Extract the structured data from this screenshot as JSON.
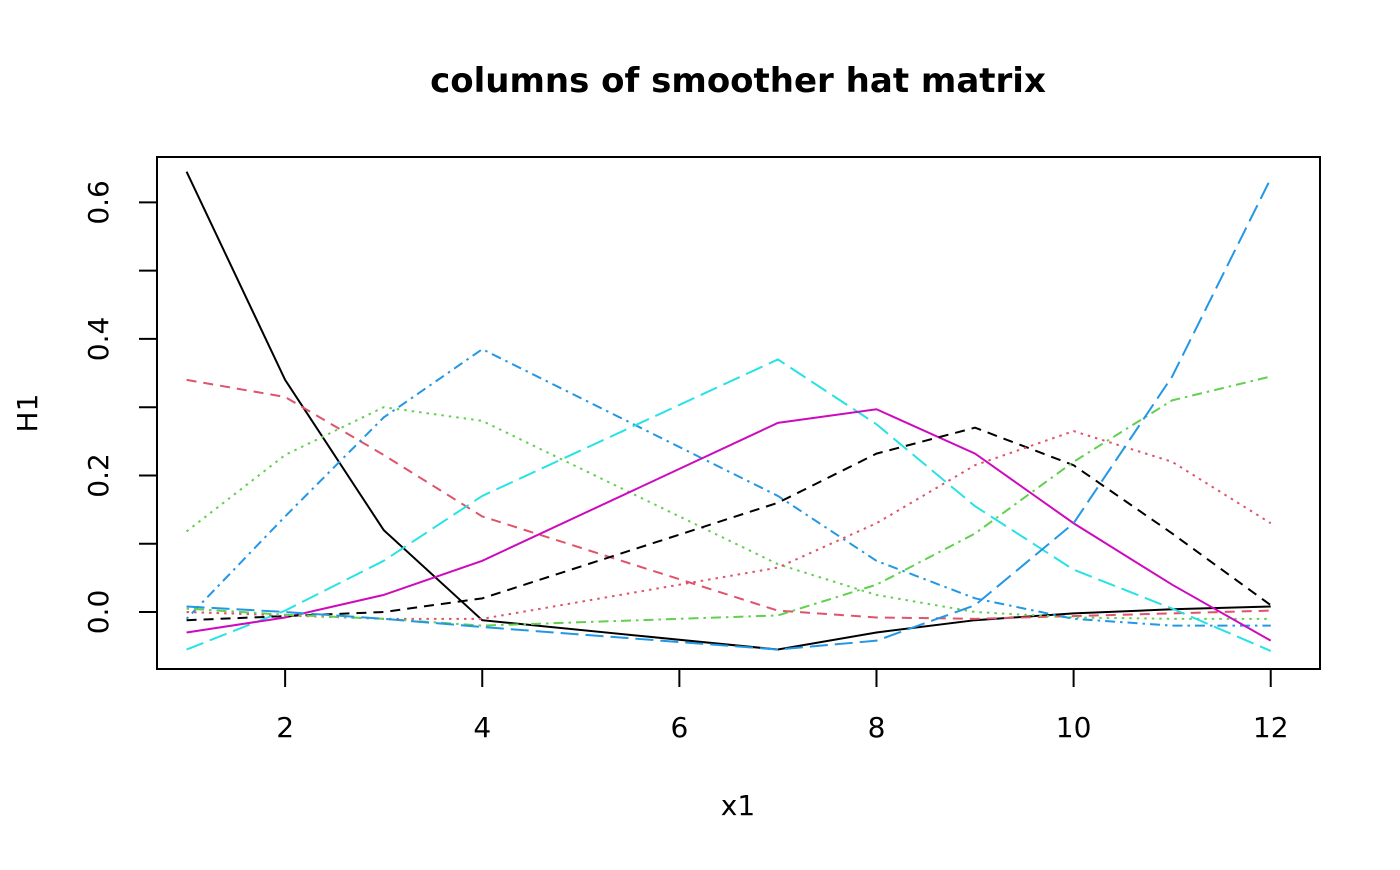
{
  "chart_data": {
    "type": "line",
    "title": "columns of smoother hat matrix",
    "xlabel": "x1",
    "ylabel": "H1",
    "xlim": [
      0.7,
      12.5
    ],
    "ylim": [
      -0.0835,
      0.6665
    ],
    "x": [
      1,
      2,
      3,
      4,
      7,
      8,
      9,
      10,
      11,
      12
    ],
    "xticks": [
      2,
      4,
      6,
      8,
      10,
      12
    ],
    "yticks": [
      0.0,
      0.1,
      0.2,
      0.3,
      0.4,
      0.5,
      0.6
    ],
    "yticklabels": [
      "0.0",
      "0.2",
      "0.4",
      "0.6"
    ],
    "grid": false,
    "legend": "none",
    "series": [
      {
        "color": "#000000",
        "dash": "solid",
        "values": [
          0.645,
          0.34,
          0.12,
          -0.012,
          -0.055,
          -0.03,
          -0.012,
          -0.002,
          0.004,
          0.008
        ]
      },
      {
        "color": "#DF536B",
        "dash": "dashed",
        "values": [
          0.34,
          0.315,
          0.23,
          0.14,
          0.002,
          -0.008,
          -0.01,
          -0.006,
          -0.002,
          0.002
        ]
      },
      {
        "color": "#61D04F",
        "dash": "dotted",
        "values": [
          0.118,
          0.23,
          0.3,
          0.28,
          0.07,
          0.025,
          0.0,
          -0.008,
          -0.01,
          -0.01
        ]
      },
      {
        "color": "#2297E6",
        "dash": "dotdash",
        "values": [
          -0.01,
          0.14,
          0.285,
          0.385,
          0.17,
          0.075,
          0.02,
          -0.01,
          -0.02,
          -0.02
        ]
      },
      {
        "color": "#28E2E5",
        "dash": "longdash",
        "values": [
          -0.055,
          0.002,
          0.075,
          0.17,
          0.37,
          0.275,
          0.155,
          0.062,
          0.005,
          -0.057
        ]
      },
      {
        "color": "#CD0BBC",
        "dash": "solid",
        "values": [
          -0.03,
          -0.008,
          0.025,
          0.075,
          0.277,
          0.297,
          0.232,
          0.13,
          0.04,
          -0.042
        ]
      },
      {
        "color": "#000000",
        "dash": "dashed",
        "values": [
          -0.012,
          -0.006,
          0.0,
          0.02,
          0.16,
          0.232,
          0.27,
          0.215,
          0.115,
          0.01
        ]
      },
      {
        "color": "#DF536B",
        "dash": "dotted",
        "values": [
          0.0,
          -0.005,
          -0.01,
          -0.01,
          0.065,
          0.13,
          0.215,
          0.265,
          0.22,
          0.13
        ]
      },
      {
        "color": "#61D04F",
        "dash": "dotdash",
        "values": [
          0.005,
          -0.004,
          -0.01,
          -0.02,
          -0.005,
          0.04,
          0.115,
          0.22,
          0.31,
          0.345
        ]
      },
      {
        "color": "#2297E6",
        "dash": "longdash",
        "values": [
          0.008,
          0.0,
          -0.01,
          -0.022,
          -0.055,
          -0.042,
          0.01,
          0.13,
          0.345,
          0.635
        ]
      }
    ]
  }
}
